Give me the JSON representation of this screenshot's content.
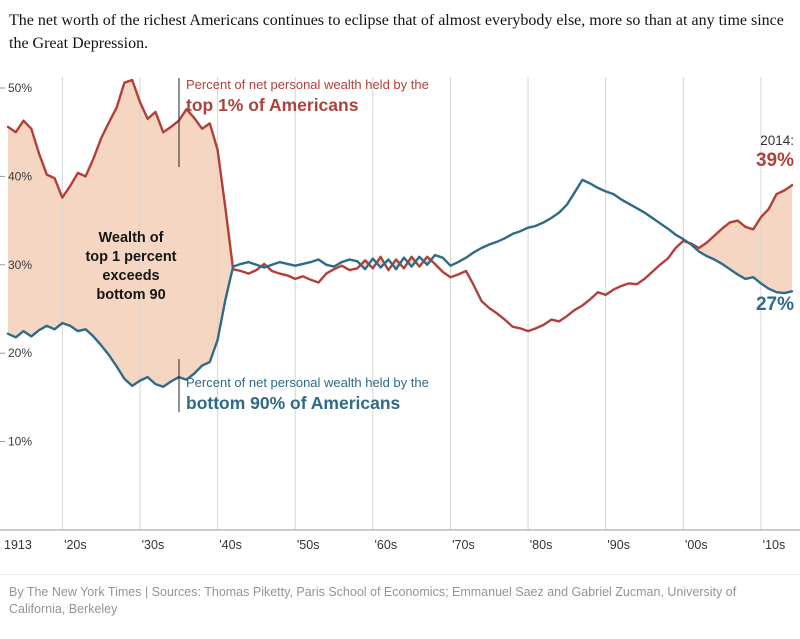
{
  "header": {
    "title": "The net worth of the richest Americans continues to eclipse that of almost everybody else, more so than at any time since the Great Depression."
  },
  "footer": {
    "credit": "By The New York Times | Sources: Thomas Piketty, Paris School of Economics; Emmanuel Saez and Gabriel Zucman, University of California, Berkeley"
  },
  "chart_data": {
    "type": "line",
    "title": "Percent of net personal wealth held by the top 1% and bottom 90% of Americans, 1913-2014",
    "grid": "vertical-decade-lines",
    "fill_rule": "shade area where top 1% share exceeds bottom 90% share",
    "years": [
      1913,
      1914,
      1915,
      1916,
      1917,
      1918,
      1919,
      1920,
      1921,
      1922,
      1923,
      1924,
      1925,
      1926,
      1927,
      1928,
      1929,
      1930,
      1931,
      1932,
      1933,
      1934,
      1935,
      1936,
      1937,
      1938,
      1939,
      1940,
      1941,
      1942,
      1943,
      1944,
      1945,
      1946,
      1947,
      1948,
      1949,
      1950,
      1951,
      1952,
      1953,
      1954,
      1955,
      1956,
      1957,
      1958,
      1959,
      1960,
      1961,
      1962,
      1963,
      1964,
      1965,
      1966,
      1967,
      1968,
      1969,
      1970,
      1971,
      1972,
      1973,
      1974,
      1975,
      1976,
      1977,
      1978,
      1979,
      1980,
      1981,
      1982,
      1983,
      1984,
      1985,
      1986,
      1987,
      1988,
      1989,
      1990,
      1991,
      1992,
      1993,
      1994,
      1995,
      1996,
      1997,
      1998,
      1999,
      2000,
      2001,
      2002,
      2003,
      2004,
      2005,
      2006,
      2007,
      2008,
      2009,
      2010,
      2011,
      2012,
      2013,
      2014
    ],
    "series": [
      {
        "name": "Percent of net personal wealth held by the top 1% of Americans",
        "color_key": "top1",
        "end_value_label": "39%",
        "values": [
          45.6,
          45.0,
          46.3,
          45.4,
          42.6,
          40.2,
          39.8,
          37.6,
          38.9,
          40.4,
          40.0,
          42.0,
          44.3,
          46.1,
          47.8,
          50.6,
          50.9,
          48.4,
          46.5,
          47.3,
          45.0,
          45.6,
          46.3,
          47.6,
          46.6,
          45.4,
          46.0,
          43.0,
          36.5,
          29.5,
          29.3,
          29.0,
          29.4,
          30.1,
          29.3,
          29.0,
          28.8,
          28.4,
          28.7,
          28.3,
          28.0,
          29.0,
          29.5,
          29.9,
          29.4,
          29.6,
          30.5,
          29.6,
          30.9,
          29.4,
          30.6,
          29.6,
          30.9,
          29.8,
          30.9,
          30.1,
          29.2,
          28.6,
          28.9,
          29.3,
          27.7,
          25.9,
          25.1,
          24.5,
          23.8,
          23.0,
          22.8,
          22.5,
          22.8,
          23.2,
          23.8,
          23.6,
          24.2,
          24.9,
          25.4,
          26.1,
          26.9,
          26.6,
          27.2,
          27.6,
          27.9,
          27.8,
          28.4,
          29.2,
          30.0,
          30.7,
          31.9,
          32.7,
          32.4,
          31.9,
          32.5,
          33.3,
          34.1,
          34.8,
          35.0,
          34.3,
          34.0,
          35.4,
          36.3,
          38.0,
          38.4,
          39.0
        ]
      },
      {
        "name": "Percent of net personal wealth held by the bottom 90% of Americans",
        "color_key": "bottom90",
        "end_value_label": "27%",
        "values": [
          22.2,
          21.8,
          22.5,
          21.9,
          22.6,
          23.1,
          22.7,
          23.4,
          23.1,
          22.5,
          22.7,
          21.9,
          20.9,
          19.8,
          18.5,
          17.1,
          16.3,
          16.9,
          17.3,
          16.5,
          16.2,
          16.8,
          17.3,
          17.0,
          17.7,
          18.6,
          19.0,
          21.5,
          26.0,
          29.8,
          30.1,
          30.3,
          30.0,
          29.7,
          30.0,
          30.3,
          30.1,
          29.9,
          30.1,
          30.3,
          30.6,
          30.0,
          29.8,
          30.3,
          30.6,
          30.4,
          29.5,
          30.7,
          29.7,
          30.6,
          29.5,
          30.8,
          29.8,
          30.9,
          30.0,
          31.1,
          30.8,
          29.9,
          30.3,
          30.8,
          31.4,
          31.9,
          32.3,
          32.6,
          33.0,
          33.5,
          33.8,
          34.2,
          34.4,
          34.8,
          35.3,
          35.9,
          36.8,
          38.2,
          39.6,
          39.2,
          38.7,
          38.3,
          38.0,
          37.4,
          36.9,
          36.4,
          35.9,
          35.3,
          34.7,
          34.1,
          33.4,
          32.9,
          32.3,
          31.5,
          31.0,
          30.6,
          30.1,
          29.5,
          28.9,
          28.4,
          28.6,
          27.9,
          27.3,
          26.9,
          26.8,
          27.0
        ]
      }
    ],
    "colors": {
      "top1": "#b0413a",
      "bottom90": "#2f6a87",
      "fill": "#f5d6c2",
      "grid": "#d4d4d4",
      "axis": "#999999",
      "tick_text": "#3c3c3c"
    },
    "y_axis": {
      "range": [
        0,
        52
      ],
      "ticks": [
        {
          "value": 10,
          "label": "10%"
        },
        {
          "value": 20,
          "label": "20%"
        },
        {
          "value": 30,
          "label": "30%"
        },
        {
          "value": 40,
          "label": "40%"
        },
        {
          "value": 50,
          "label": "50%"
        }
      ]
    },
    "x_axis": {
      "ticks": [
        {
          "year": 1913,
          "label": "1913",
          "grid": false
        },
        {
          "year": 1920,
          "label": "'20s",
          "grid": true
        },
        {
          "year": 1930,
          "label": "'30s",
          "grid": true
        },
        {
          "year": 1940,
          "label": "'40s",
          "grid": true
        },
        {
          "year": 1950,
          "label": "'50s",
          "grid": true
        },
        {
          "year": 1960,
          "label": "'60s",
          "grid": true
        },
        {
          "year": 1970,
          "label": "'70s",
          "grid": true
        },
        {
          "year": 1980,
          "label": "'80s",
          "grid": true
        },
        {
          "year": 1990,
          "label": "'90s",
          "grid": true
        },
        {
          "year": 2000,
          "label": "'00s",
          "grid": true
        },
        {
          "year": 2010,
          "label": "'10s",
          "grid": true
        }
      ]
    },
    "annotations": {
      "top1_line1": "Percent of net personal wealth held by the",
      "top1_line2": "top 1% of Americans",
      "bottom90_line1": "Percent of net personal wealth held by the",
      "bottom90_line2": "bottom 90% of Americans",
      "area_label_lines": [
        "Wealth of",
        "top 1 percent",
        "exceeds",
        "bottom 90"
      ],
      "end_year": "2014:",
      "end_top1": "39%",
      "end_bottom90": "27%"
    }
  }
}
